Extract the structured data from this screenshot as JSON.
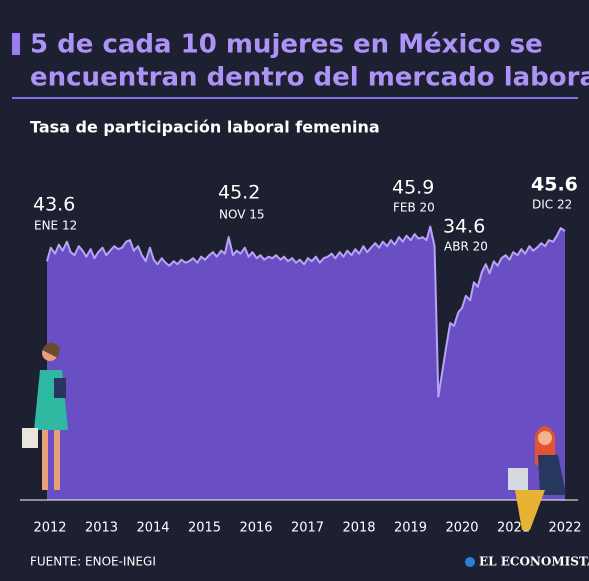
{
  "chart_data": {
    "type": "area",
    "title_lines": [
      "5 de cada 10 mujeres en México se",
      "encuentran dentro del mercado laboral"
    ],
    "subtitle": "Tasa de participación laboral femenina",
    "source": "FUENTE: ENOE-INEGI",
    "brand": "EL ECONOMISTA",
    "color": "#6a4fc4",
    "line_color": "#b8a4f4",
    "x": [
      2012,
      2012.08,
      2012.17,
      2012.25,
      2012.33,
      2012.42,
      2012.5,
      2012.58,
      2012.67,
      2012.75,
      2012.83,
      2012.92,
      2013,
      2013.08,
      2013.17,
      2013.25,
      2013.33,
      2013.42,
      2013.5,
      2013.58,
      2013.67,
      2013.75,
      2013.83,
      2013.92,
      2014,
      2014.08,
      2014.17,
      2014.25,
      2014.33,
      2014.42,
      2014.5,
      2014.58,
      2014.67,
      2014.75,
      2014.83,
      2014.92,
      2015,
      2015.08,
      2015.17,
      2015.25,
      2015.33,
      2015.42,
      2015.5,
      2015.58,
      2015.67,
      2015.75,
      2015.83,
      2015.92,
      2016,
      2016.08,
      2016.17,
      2016.25,
      2016.33,
      2016.42,
      2016.5,
      2016.58,
      2016.67,
      2016.75,
      2016.83,
      2016.92,
      2017,
      2017.08,
      2017.17,
      2017.25,
      2017.33,
      2017.42,
      2017.5,
      2017.58,
      2017.67,
      2017.75,
      2017.83,
      2017.92,
      2018,
      2018.08,
      2018.17,
      2018.25,
      2018.33,
      2018.42,
      2018.5,
      2018.58,
      2018.67,
      2018.75,
      2018.83,
      2018.92,
      2019,
      2019.08,
      2019.17,
      2019.25,
      2019.33,
      2019.42,
      2019.5,
      2019.58,
      2019.67,
      2019.75,
      2019.83,
      2019.92,
      2020,
      2020.08,
      2020.17,
      2020.25,
      2020.33,
      2020.42,
      2020.5,
      2020.58,
      2020.67,
      2020.75,
      2020.83,
      2020.92,
      2021,
      2021.08,
      2021.17,
      2021.25,
      2021.33,
      2021.42,
      2021.5,
      2021.58,
      2021.67,
      2021.75,
      2021.83,
      2021.92,
      2022,
      2022.08,
      2022.17,
      2022.25,
      2022.33,
      2022.42,
      2022.5,
      2022.58,
      2022.67,
      2022.75,
      2022.83,
      2022.92
    ],
    "values": [
      43.6,
      44.5,
      44.1,
      44.7,
      44.3,
      44.9,
      44.2,
      44.0,
      44.6,
      44.3,
      43.9,
      44.4,
      43.8,
      44.2,
      44.5,
      44.0,
      44.3,
      44.6,
      44.4,
      44.5,
      44.9,
      45.0,
      44.3,
      44.6,
      44.0,
      43.6,
      44.5,
      43.7,
      43.4,
      43.8,
      43.5,
      43.3,
      43.6,
      43.4,
      43.7,
      43.5,
      43.6,
      43.8,
      43.5,
      43.9,
      43.7,
      44.0,
      44.2,
      43.9,
      44.3,
      44.1,
      45.2,
      44.0,
      44.3,
      44.1,
      44.5,
      43.9,
      44.2,
      43.8,
      44.0,
      43.7,
      43.9,
      43.8,
      44.0,
      43.7,
      43.9,
      43.6,
      43.8,
      43.5,
      43.7,
      43.4,
      43.8,
      43.6,
      43.9,
      43.5,
      43.8,
      43.9,
      44.1,
      43.8,
      44.2,
      43.9,
      44.3,
      44.0,
      44.4,
      44.1,
      44.6,
      44.2,
      44.5,
      44.8,
      44.5,
      44.9,
      44.6,
      45.0,
      44.7,
      45.2,
      44.9,
      45.3,
      45.0,
      45.4,
      45.1,
      45.2,
      45.0,
      45.9,
      44.6,
      34.6,
      36.2,
      38.0,
      39.5,
      39.3,
      40.2,
      40.5,
      41.3,
      41.0,
      42.2,
      41.9,
      42.9,
      43.4,
      42.8,
      43.6,
      43.3,
      43.8,
      44.0,
      43.7,
      44.2,
      44.0,
      44.4,
      44.1,
      44.6,
      44.3,
      44.5,
      44.8,
      44.6,
      45.0,
      44.9,
      45.3,
      45.8,
      45.6
    ],
    "xlim": [
      2012,
      2022.92
    ],
    "ylim": [
      28,
      48
    ],
    "xticks": [
      2012,
      2013,
      2014,
      2015,
      2016,
      2017,
      2018,
      2019,
      2020,
      2021,
      2022
    ],
    "annotations": [
      {
        "text": "43.6",
        "date": "ENE 12"
      },
      {
        "text": "45.2",
        "date": "NOV 15"
      },
      {
        "text": "45.9",
        "date": "FEB 20"
      },
      {
        "text": "34.6",
        "date": "ABR 20"
      },
      {
        "text": "45.6",
        "date": "DIC 22"
      }
    ]
  }
}
